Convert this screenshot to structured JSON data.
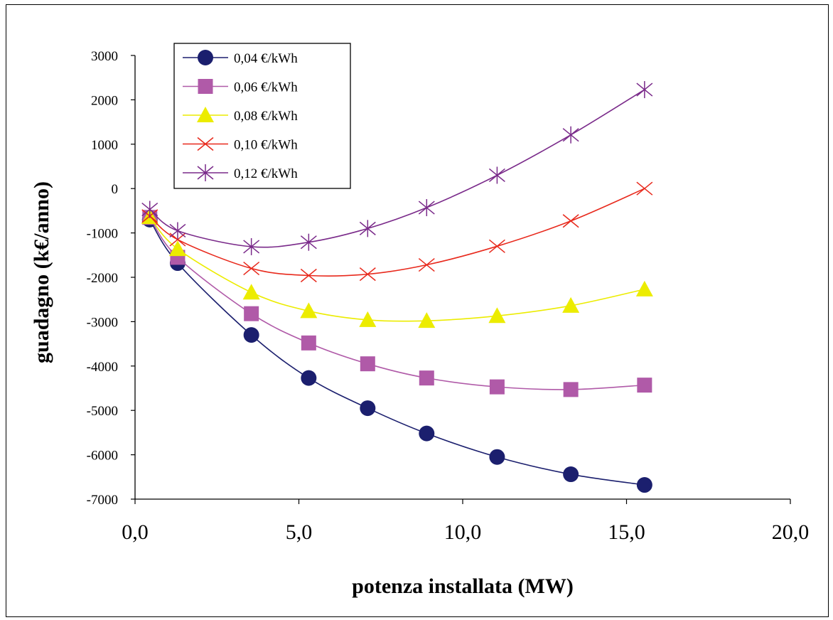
{
  "chart_data": {
    "type": "line",
    "title": "",
    "xlabel": "potenza installata (MW)",
    "ylabel": "guadagno (k€/anno)",
    "xlim": [
      0,
      20
    ],
    "ylim": [
      -7000,
      3000
    ],
    "xticks": [
      "0,0",
      "5,0",
      "10,0",
      "15,0",
      "20,0"
    ],
    "xtick_values": [
      0,
      5,
      10,
      15,
      20
    ],
    "yticks": [
      "3000",
      "2000",
      "1000",
      "0",
      "-1000",
      "-2000",
      "-3000",
      "-4000",
      "-5000",
      "-6000",
      "-7000"
    ],
    "ytick_values": [
      3000,
      2000,
      1000,
      0,
      -1000,
      -2000,
      -3000,
      -4000,
      -5000,
      -6000,
      -7000
    ],
    "grid": false,
    "legend_position": "top-left",
    "x": [
      0.45,
      1.3,
      3.55,
      5.3,
      7.1,
      8.9,
      11.05,
      13.3,
      15.55
    ],
    "series": [
      {
        "name": "0,04 €/kWh",
        "marker": "circle",
        "color": "#1b1f6e",
        "values": [
          -700,
          -1680,
          -3300,
          -4270,
          -4950,
          -5520,
          -6050,
          -6440,
          -6680
        ]
      },
      {
        "name": "0,06 €/kWh",
        "marker": "square",
        "color": "#b05aa8",
        "values": [
          -650,
          -1550,
          -2820,
          -3480,
          -3950,
          -4270,
          -4470,
          -4530,
          -4430
        ]
      },
      {
        "name": "0,08 €/kWh",
        "marker": "triangle",
        "color": "#ecec00",
        "values": [
          -640,
          -1360,
          -2340,
          -2760,
          -2960,
          -2980,
          -2870,
          -2640,
          -2270
        ]
      },
      {
        "name": "0,10 €/kWh",
        "marker": "x",
        "color": "#e8291c",
        "values": [
          -620,
          -1150,
          -1800,
          -1960,
          -1930,
          -1720,
          -1300,
          -730,
          0
        ]
      },
      {
        "name": "0,12 €/kWh",
        "marker": "star",
        "color": "#7a2a8a",
        "values": [
          -470,
          -950,
          -1310,
          -1210,
          -900,
          -430,
          300,
          1210,
          2230
        ]
      }
    ]
  }
}
